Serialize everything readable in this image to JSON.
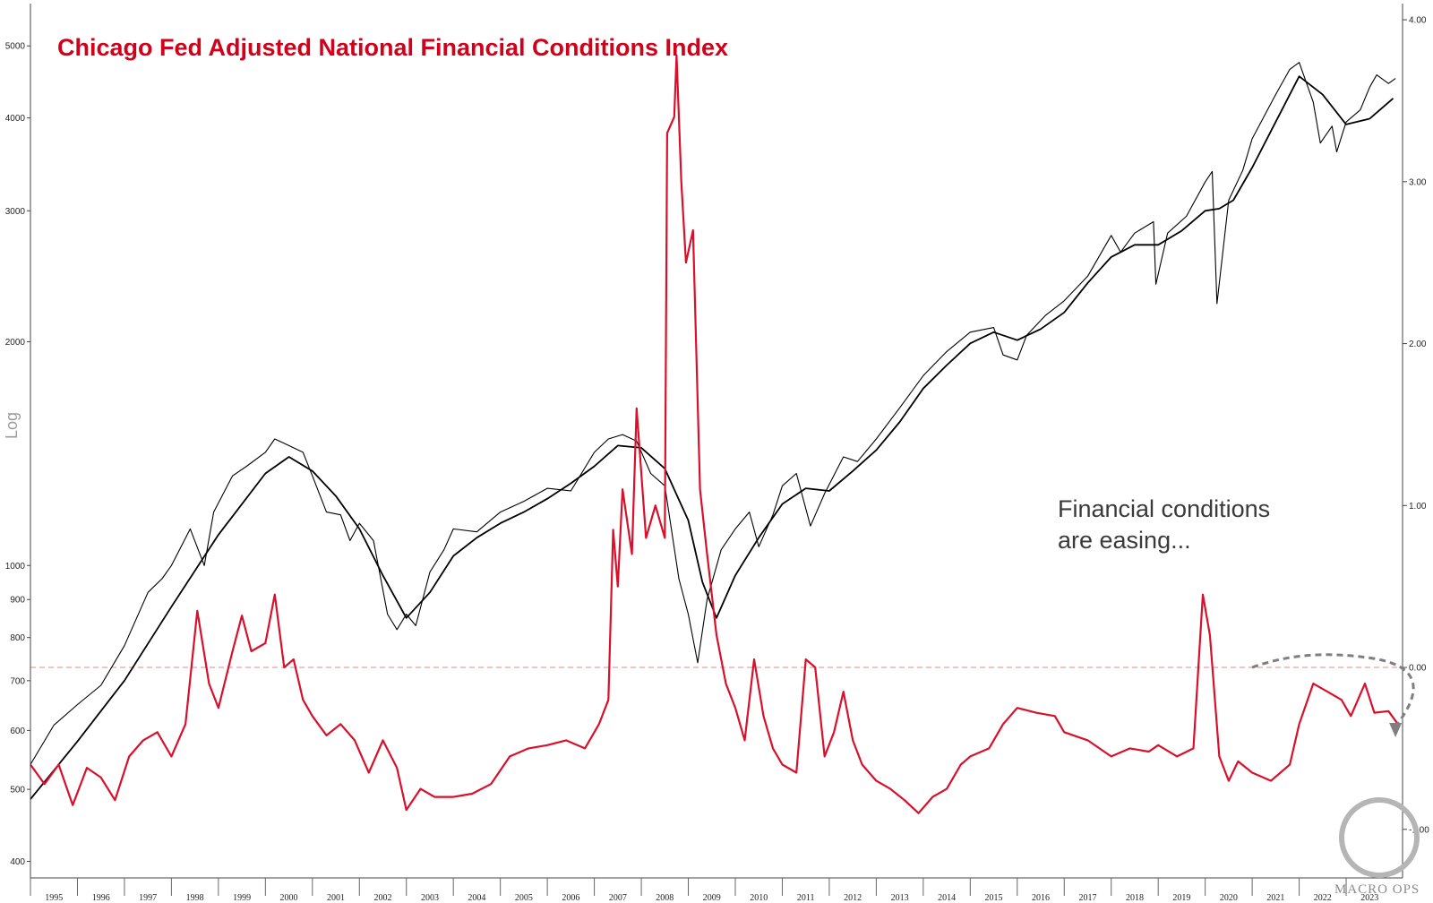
{
  "chart_data": {
    "type": "line",
    "title": "Chicago Fed Adjusted National Financial Conditions Index",
    "annotation": [
      "Financial conditions",
      "are easing..."
    ],
    "left_axis": {
      "label": "Log",
      "scale": "log",
      "range": [
        380,
        5700
      ],
      "ticks": [
        400,
        500,
        600,
        700,
        800,
        900,
        1000,
        2000,
        3000,
        4000,
        5000
      ],
      "tick_labels": [
        "400",
        "500",
        "600",
        "700",
        "800",
        "900",
        "1000",
        "2000",
        "3000",
        "4000",
        "5000"
      ]
    },
    "right_axis": {
      "scale": "linear",
      "range": [
        -1.3,
        4.1
      ],
      "ticks": [
        -1.0,
        0.0,
        1.0,
        2.0,
        3.0,
        4.0
      ],
      "tick_labels": [
        "-1.00",
        "0.00",
        "1.00",
        "2.00",
        "3.00",
        "4.00"
      ],
      "reference_line": 0.0
    },
    "x_axis": {
      "range": [
        1995.0,
        2024.2
      ],
      "tick_labels": [
        "1995",
        "1996",
        "1997",
        "1998",
        "1999",
        "2000",
        "2001",
        "2002",
        "2003",
        "2004",
        "2005",
        "2006",
        "2007",
        "2008",
        "2009",
        "2010",
        "2011",
        "2012",
        "2013",
        "2014",
        "2015",
        "2016",
        "2017",
        "2018",
        "2019",
        "2020",
        "2021",
        "2022",
        "2023"
      ]
    },
    "series": [
      {
        "axis": "left",
        "color": "#000000",
        "points": [
          [
            1995.0,
            540
          ],
          [
            1995.5,
            610
          ],
          [
            1996.0,
            650
          ],
          [
            1996.5,
            690
          ],
          [
            1997.0,
            780
          ],
          [
            1997.5,
            920
          ],
          [
            1997.8,
            960
          ],
          [
            1998.0,
            1000
          ],
          [
            1998.4,
            1120
          ],
          [
            1998.7,
            1000
          ],
          [
            1998.9,
            1180
          ],
          [
            1999.3,
            1320
          ],
          [
            1999.6,
            1360
          ],
          [
            2000.0,
            1420
          ],
          [
            2000.2,
            1480
          ],
          [
            2000.5,
            1450
          ],
          [
            2000.8,
            1420
          ],
          [
            2001.0,
            1320
          ],
          [
            2001.3,
            1180
          ],
          [
            2001.6,
            1170
          ],
          [
            2001.8,
            1080
          ],
          [
            2002.0,
            1140
          ],
          [
            2002.3,
            1080
          ],
          [
            2002.6,
            860
          ],
          [
            2002.8,
            820
          ],
          [
            2003.0,
            860
          ],
          [
            2003.2,
            830
          ],
          [
            2003.5,
            980
          ],
          [
            2003.8,
            1050
          ],
          [
            2004.0,
            1120
          ],
          [
            2004.5,
            1110
          ],
          [
            2005.0,
            1180
          ],
          [
            2005.5,
            1220
          ],
          [
            2006.0,
            1270
          ],
          [
            2006.5,
            1260
          ],
          [
            2007.0,
            1420
          ],
          [
            2007.3,
            1480
          ],
          [
            2007.6,
            1500
          ],
          [
            2007.9,
            1470
          ],
          [
            2008.2,
            1330
          ],
          [
            2008.5,
            1280
          ],
          [
            2008.8,
            960
          ],
          [
            2009.0,
            860
          ],
          [
            2009.2,
            740
          ],
          [
            2009.4,
            900
          ],
          [
            2009.7,
            1050
          ],
          [
            2010.0,
            1120
          ],
          [
            2010.3,
            1180
          ],
          [
            2010.5,
            1060
          ],
          [
            2010.8,
            1170
          ],
          [
            2011.0,
            1280
          ],
          [
            2011.3,
            1330
          ],
          [
            2011.6,
            1130
          ],
          [
            2011.9,
            1250
          ],
          [
            2012.3,
            1400
          ],
          [
            2012.6,
            1380
          ],
          [
            2013.0,
            1480
          ],
          [
            2013.5,
            1630
          ],
          [
            2014.0,
            1800
          ],
          [
            2014.5,
            1940
          ],
          [
            2015.0,
            2060
          ],
          [
            2015.5,
            2090
          ],
          [
            2015.7,
            1920
          ],
          [
            2016.0,
            1890
          ],
          [
            2016.2,
            2040
          ],
          [
            2016.6,
            2170
          ],
          [
            2017.0,
            2270
          ],
          [
            2017.5,
            2450
          ],
          [
            2018.0,
            2780
          ],
          [
            2018.2,
            2640
          ],
          [
            2018.5,
            2800
          ],
          [
            2018.9,
            2900
          ],
          [
            2018.95,
            2390
          ],
          [
            2019.2,
            2800
          ],
          [
            2019.6,
            2950
          ],
          [
            2020.0,
            3280
          ],
          [
            2020.15,
            3390
          ],
          [
            2020.25,
            2250
          ],
          [
            2020.5,
            3100
          ],
          [
            2020.8,
            3400
          ],
          [
            2021.0,
            3750
          ],
          [
            2021.5,
            4300
          ],
          [
            2021.8,
            4650
          ],
          [
            2022.0,
            4750
          ],
          [
            2022.3,
            4200
          ],
          [
            2022.45,
            3700
          ],
          [
            2022.7,
            3900
          ],
          [
            2022.8,
            3600
          ],
          [
            2023.0,
            3950
          ],
          [
            2023.3,
            4100
          ],
          [
            2023.5,
            4400
          ],
          [
            2023.65,
            4570
          ],
          [
            2023.9,
            4450
          ],
          [
            2024.05,
            4520
          ]
        ]
      },
      {
        "axis": "left",
        "color": "#000000",
        "points": [
          [
            1995.0,
            485
          ],
          [
            1996.0,
            580
          ],
          [
            1997.0,
            700
          ],
          [
            1998.0,
            880
          ],
          [
            1999.0,
            1100
          ],
          [
            2000.0,
            1330
          ],
          [
            2000.5,
            1400
          ],
          [
            2001.0,
            1340
          ],
          [
            2001.5,
            1240
          ],
          [
            2002.0,
            1120
          ],
          [
            2002.5,
            970
          ],
          [
            2003.0,
            850
          ],
          [
            2003.5,
            920
          ],
          [
            2004.0,
            1030
          ],
          [
            2004.5,
            1090
          ],
          [
            2005.0,
            1140
          ],
          [
            2005.5,
            1180
          ],
          [
            2006.0,
            1230
          ],
          [
            2006.5,
            1290
          ],
          [
            2007.0,
            1360
          ],
          [
            2007.5,
            1450
          ],
          [
            2008.0,
            1440
          ],
          [
            2008.5,
            1350
          ],
          [
            2009.0,
            1150
          ],
          [
            2009.3,
            950
          ],
          [
            2009.6,
            850
          ],
          [
            2010.0,
            970
          ],
          [
            2010.5,
            1090
          ],
          [
            2011.0,
            1210
          ],
          [
            2011.5,
            1270
          ],
          [
            2012.0,
            1260
          ],
          [
            2012.5,
            1340
          ],
          [
            2013.0,
            1430
          ],
          [
            2013.5,
            1560
          ],
          [
            2014.0,
            1730
          ],
          [
            2014.5,
            1860
          ],
          [
            2015.0,
            1990
          ],
          [
            2015.5,
            2060
          ],
          [
            2016.0,
            2010
          ],
          [
            2016.5,
            2080
          ],
          [
            2017.0,
            2190
          ],
          [
            2017.5,
            2400
          ],
          [
            2018.0,
            2600
          ],
          [
            2018.5,
            2700
          ],
          [
            2019.0,
            2700
          ],
          [
            2019.5,
            2820
          ],
          [
            2020.0,
            3000
          ],
          [
            2020.3,
            3020
          ],
          [
            2020.6,
            3100
          ],
          [
            2021.0,
            3430
          ],
          [
            2021.5,
            3950
          ],
          [
            2022.0,
            4550
          ],
          [
            2022.5,
            4300
          ],
          [
            2023.0,
            3920
          ],
          [
            2023.5,
            3990
          ],
          [
            2024.0,
            4250
          ]
        ]
      },
      {
        "axis": "right",
        "color": "#d9102b",
        "points": [
          [
            1995.0,
            -0.6
          ],
          [
            1995.3,
            -0.72
          ],
          [
            1995.6,
            -0.6
          ],
          [
            1995.9,
            -0.85
          ],
          [
            1996.2,
            -0.62
          ],
          [
            1996.5,
            -0.68
          ],
          [
            1996.8,
            -0.82
          ],
          [
            1997.1,
            -0.55
          ],
          [
            1997.4,
            -0.45
          ],
          [
            1997.7,
            -0.4
          ],
          [
            1998.0,
            -0.55
          ],
          [
            1998.3,
            -0.35
          ],
          [
            1998.55,
            0.35
          ],
          [
            1998.8,
            -0.1
          ],
          [
            1999.0,
            -0.25
          ],
          [
            1999.3,
            0.1
          ],
          [
            1999.5,
            0.32
          ],
          [
            1999.7,
            0.1
          ],
          [
            2000.0,
            0.15
          ],
          [
            2000.2,
            0.45
          ],
          [
            2000.4,
            0.0
          ],
          [
            2000.6,
            0.05
          ],
          [
            2000.8,
            -0.2
          ],
          [
            2001.0,
            -0.3
          ],
          [
            2001.3,
            -0.42
          ],
          [
            2001.6,
            -0.35
          ],
          [
            2001.9,
            -0.45
          ],
          [
            2002.2,
            -0.65
          ],
          [
            2002.5,
            -0.45
          ],
          [
            2002.8,
            -0.62
          ],
          [
            2003.0,
            -0.88
          ],
          [
            2003.3,
            -0.75
          ],
          [
            2003.6,
            -0.8
          ],
          [
            2004.0,
            -0.8
          ],
          [
            2004.4,
            -0.78
          ],
          [
            2004.8,
            -0.72
          ],
          [
            2005.2,
            -0.55
          ],
          [
            2005.6,
            -0.5
          ],
          [
            2006.0,
            -0.48
          ],
          [
            2006.4,
            -0.45
          ],
          [
            2006.8,
            -0.5
          ],
          [
            2007.1,
            -0.35
          ],
          [
            2007.3,
            -0.2
          ],
          [
            2007.4,
            0.85
          ],
          [
            2007.5,
            0.5
          ],
          [
            2007.6,
            1.1
          ],
          [
            2007.8,
            0.7
          ],
          [
            2007.9,
            1.6
          ],
          [
            2008.1,
            0.8
          ],
          [
            2008.3,
            1.0
          ],
          [
            2008.5,
            0.8
          ],
          [
            2008.55,
            3.3
          ],
          [
            2008.7,
            3.4
          ],
          [
            2008.75,
            3.78
          ],
          [
            2008.85,
            3.0
          ],
          [
            2008.95,
            2.5
          ],
          [
            2009.1,
            2.7
          ],
          [
            2009.25,
            1.1
          ],
          [
            2009.4,
            0.7
          ],
          [
            2009.6,
            0.2
          ],
          [
            2009.8,
            -0.1
          ],
          [
            2010.0,
            -0.25
          ],
          [
            2010.2,
            -0.45
          ],
          [
            2010.4,
            0.05
          ],
          [
            2010.6,
            -0.3
          ],
          [
            2010.8,
            -0.5
          ],
          [
            2011.0,
            -0.6
          ],
          [
            2011.3,
            -0.65
          ],
          [
            2011.5,
            0.05
          ],
          [
            2011.7,
            0.0
          ],
          [
            2011.9,
            -0.55
          ],
          [
            2012.1,
            -0.4
          ],
          [
            2012.3,
            -0.15
          ],
          [
            2012.5,
            -0.45
          ],
          [
            2012.7,
            -0.6
          ],
          [
            2013.0,
            -0.7
          ],
          [
            2013.3,
            -0.75
          ],
          [
            2013.6,
            -0.82
          ],
          [
            2013.9,
            -0.9
          ],
          [
            2014.2,
            -0.8
          ],
          [
            2014.5,
            -0.75
          ],
          [
            2014.8,
            -0.6
          ],
          [
            2015.0,
            -0.55
          ],
          [
            2015.4,
            -0.5
          ],
          [
            2015.7,
            -0.35
          ],
          [
            2016.0,
            -0.25
          ],
          [
            2016.4,
            -0.28
          ],
          [
            2016.8,
            -0.3
          ],
          [
            2017.0,
            -0.4
          ],
          [
            2017.5,
            -0.45
          ],
          [
            2018.0,
            -0.55
          ],
          [
            2018.4,
            -0.5
          ],
          [
            2018.8,
            -0.52
          ],
          [
            2019.0,
            -0.48
          ],
          [
            2019.4,
            -0.55
          ],
          [
            2019.75,
            -0.5
          ],
          [
            2019.95,
            0.45
          ],
          [
            2020.1,
            0.2
          ],
          [
            2020.3,
            -0.55
          ],
          [
            2020.5,
            -0.7
          ],
          [
            2020.7,
            -0.58
          ],
          [
            2021.0,
            -0.65
          ],
          [
            2021.4,
            -0.7
          ],
          [
            2021.8,
            -0.6
          ],
          [
            2022.0,
            -0.35
          ],
          [
            2022.3,
            -0.1
          ],
          [
            2022.6,
            -0.15
          ],
          [
            2022.9,
            -0.2
          ],
          [
            2023.1,
            -0.3
          ],
          [
            2023.4,
            -0.1
          ],
          [
            2023.6,
            -0.28
          ],
          [
            2023.9,
            -0.27
          ],
          [
            2024.1,
            -0.35
          ]
        ]
      }
    ],
    "highlight_color": "#d9102b",
    "reference_line_color": "#e8a0a8",
    "arrow_color": "#7f7f7f",
    "grid": false,
    "legend": "none"
  },
  "watermark": "MACRO OPS"
}
